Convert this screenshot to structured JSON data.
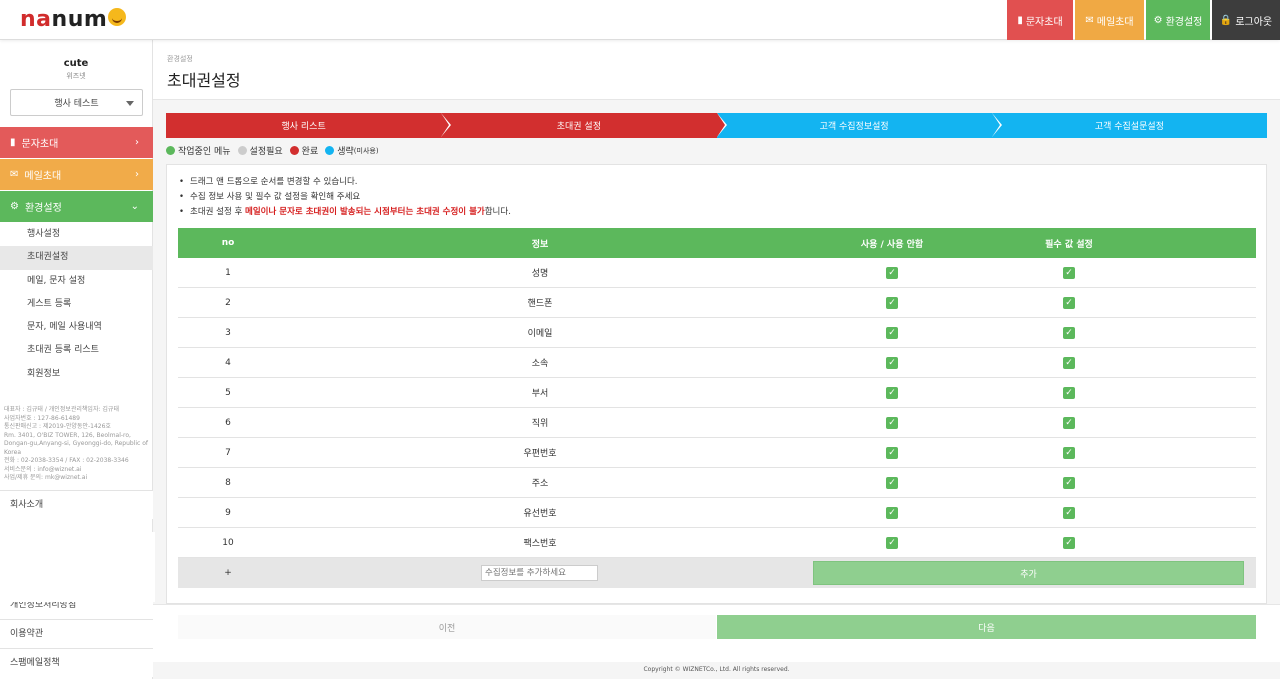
{
  "header": {
    "logo_text": "nanume",
    "nav": [
      {
        "label": "문자초대",
        "icon": "phone-icon"
      },
      {
        "label": "메일초대",
        "icon": "envelope-icon"
      },
      {
        "label": "환경설정",
        "icon": "gear-icon"
      },
      {
        "label": "로그아웃",
        "icon": "lock-icon"
      }
    ]
  },
  "sidebar": {
    "user_name": "cute",
    "user_org": "위즈넷",
    "event_select": "행사 테스트",
    "menus": [
      {
        "label": "문자초대",
        "icon": "phone-icon"
      },
      {
        "label": "메일초대",
        "icon": "envelope-icon"
      },
      {
        "label": "환경설정",
        "icon": "gear-icon"
      }
    ],
    "submenu": [
      "행사설정",
      "초대권설정",
      "메일, 문자 설정",
      "게스트 등록",
      "문자, 메일 사용내역",
      "초대권 등록 리스트",
      "회원정보"
    ],
    "company_info": [
      "대표자 : 김규태 / 개인정보관리책임자: 김규태",
      "사업자번호 : 127-86-61489",
      "통신판매신고 : 제2019-안양동안-1426호",
      "Rm. 3401, O'BIZ TOWER, 126, Beolmal-ro, Dongan-gu,Anyang-si, Gyeonggi-do, Republic of Korea",
      "전화 : 02-2038-3354 / FAX : 02-2038-3346",
      "서비스문의 : info@wiznet.ai",
      "사업/제휴 문의: mk@wiznet.ai"
    ],
    "links_top": [
      "회사소개"
    ],
    "links_bottom": [
      "개인정보처리방침",
      "이용약관",
      "스팸메일정책"
    ]
  },
  "page": {
    "breadcrumb": "환경설정",
    "title": "초대권설정"
  },
  "steps": [
    "행사 리스트",
    "초대권 설정",
    "고객 수집정보설정",
    "고객 수집설문설정"
  ],
  "legend": [
    {
      "label": "작업중인 메뉴",
      "color": "#5cb85c"
    },
    {
      "label": "설정필요",
      "color": "#cccccc"
    },
    {
      "label": "완료",
      "color": "#d22f2f"
    },
    {
      "label": "생략",
      "sub": "(미사용)",
      "color": "#13b4f1"
    }
  ],
  "notes": {
    "line1": "드래그 앤 드롭으로 순서를 변경할 수 있습니다.",
    "line2": "수집 정보 사용 및 필수 값 설정을 확인해 주세요",
    "line3_pre": "초대권 설정 후 ",
    "line3_hl": "메일이나 문자로 초대권이 발송되는 시점부터는 초대권 수정이 불가",
    "line3_post": "합니다."
  },
  "table": {
    "headers": [
      "no",
      "정보",
      "사용 / 사용 안함",
      "필수 값 설정"
    ],
    "rows": [
      {
        "no": "1",
        "info": "성명"
      },
      {
        "no": "2",
        "info": "핸드폰"
      },
      {
        "no": "3",
        "info": "이메일"
      },
      {
        "no": "4",
        "info": "소속"
      },
      {
        "no": "5",
        "info": "부서"
      },
      {
        "no": "6",
        "info": "직위"
      },
      {
        "no": "7",
        "info": "우편번호"
      },
      {
        "no": "8",
        "info": "주소"
      },
      {
        "no": "9",
        "info": "유선번호"
      },
      {
        "no": "10",
        "info": "팩스번호"
      }
    ],
    "add_symbol": "+",
    "add_placeholder": "수집정보를 추가하세요",
    "add_button": "추가"
  },
  "nav_buttons": {
    "prev": "이전",
    "next": "다음"
  },
  "copyright": "Copyright © WIZNETCo., Ltd. All rights reserved."
}
